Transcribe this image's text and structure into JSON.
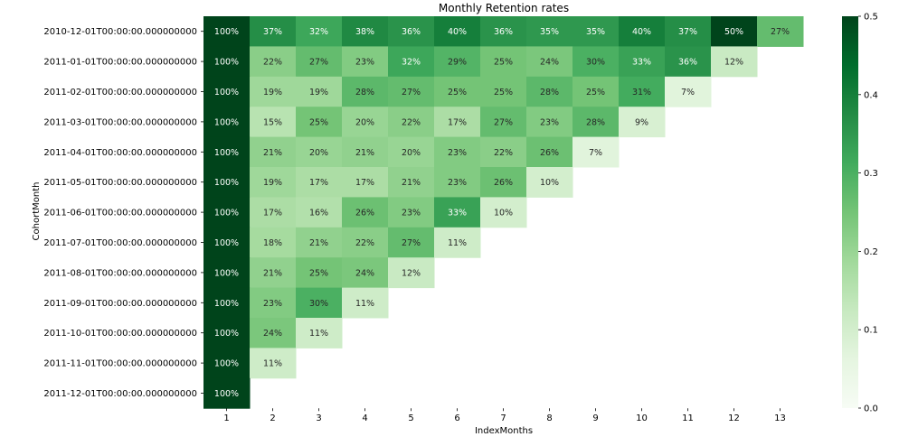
{
  "chart_data": {
    "type": "heatmap",
    "title": "Monthly Retention rates",
    "xlabel": "IndexMonths",
    "ylabel": "CohortMonth",
    "x_categories": [
      "1",
      "2",
      "3",
      "4",
      "5",
      "6",
      "7",
      "8",
      "9",
      "10",
      "11",
      "12",
      "13"
    ],
    "y_categories": [
      "2010-12-01T00:00:00.000000000",
      "2011-01-01T00:00:00.000000000",
      "2011-02-01T00:00:00.000000000",
      "2011-03-01T00:00:00.000000000",
      "2011-04-01T00:00:00.000000000",
      "2011-05-01T00:00:00.000000000",
      "2011-06-01T00:00:00.000000000",
      "2011-07-01T00:00:00.000000000",
      "2011-08-01T00:00:00.000000000",
      "2011-09-01T00:00:00.000000000",
      "2011-10-01T00:00:00.000000000",
      "2011-11-01T00:00:00.000000000",
      "2011-12-01T00:00:00.000000000"
    ],
    "values": [
      [
        1.0,
        0.37,
        0.32,
        0.38,
        0.36,
        0.4,
        0.36,
        0.35,
        0.35,
        0.4,
        0.37,
        0.5,
        0.27
      ],
      [
        1.0,
        0.22,
        0.27,
        0.23,
        0.32,
        0.29,
        0.25,
        0.24,
        0.3,
        0.33,
        0.36,
        0.12
      ],
      [
        1.0,
        0.19,
        0.19,
        0.28,
        0.27,
        0.25,
        0.25,
        0.28,
        0.25,
        0.31,
        0.07
      ],
      [
        1.0,
        0.15,
        0.25,
        0.2,
        0.22,
        0.17,
        0.27,
        0.23,
        0.28,
        0.09
      ],
      [
        1.0,
        0.21,
        0.2,
        0.21,
        0.2,
        0.23,
        0.22,
        0.26,
        0.07
      ],
      [
        1.0,
        0.19,
        0.17,
        0.17,
        0.21,
        0.23,
        0.26,
        0.1
      ],
      [
        1.0,
        0.17,
        0.16,
        0.26,
        0.23,
        0.33,
        0.1
      ],
      [
        1.0,
        0.18,
        0.21,
        0.22,
        0.27,
        0.11
      ],
      [
        1.0,
        0.21,
        0.25,
        0.24,
        0.12
      ],
      [
        1.0,
        0.23,
        0.3,
        0.11
      ],
      [
        1.0,
        0.24,
        0.11
      ],
      [
        1.0,
        0.11
      ],
      [
        1.0
      ]
    ],
    "value_format": "percent",
    "colormap": "Greens",
    "vmin": 0.0,
    "vmax": 0.5,
    "colorbar_ticks": [
      "0.0",
      "0.1",
      "0.2",
      "0.3",
      "0.4",
      "0.5"
    ],
    "colors": [
      "#f7fcf5",
      "#e5f5e0",
      "#c7e9c0",
      "#a1d99b",
      "#74c476",
      "#41ab5d",
      "#238b45",
      "#006d2c",
      "#00441b"
    ]
  }
}
